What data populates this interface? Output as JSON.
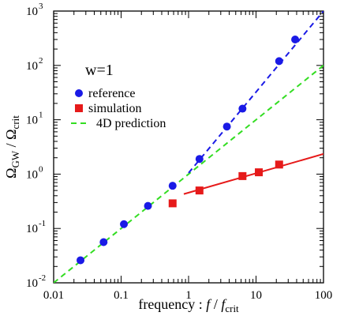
{
  "chart_data": {
    "type": "scatter",
    "xscale": "log",
    "yscale": "log",
    "xlim": [
      0.01,
      100
    ],
    "ylim": [
      0.01,
      1000
    ],
    "x_ticks": [
      0.01,
      0.1,
      1,
      10,
      100
    ],
    "x_tick_labels": [
      "0.01",
      "0.1",
      "1",
      "10",
      "100"
    ],
    "y_ticks": [
      0.01,
      0.1,
      1,
      10,
      100,
      1000
    ],
    "y_tick_labels": [
      {
        "base": "10",
        "exp": "-2"
      },
      {
        "base": "10",
        "exp": "-1"
      },
      {
        "base": "10",
        "exp": "0"
      },
      {
        "base": "10",
        "exp": "1"
      },
      {
        "base": "10",
        "exp": "2"
      },
      {
        "base": "10",
        "exp": "3"
      }
    ],
    "xlabel": {
      "prefix": "frequency : ",
      "f": "f",
      "slash": " / ",
      "f2": "f",
      "sub": "crit"
    },
    "ylabel": {
      "main": "Ω",
      "sub1": "GW",
      "slash": " / Ω",
      "sub2": "crit"
    },
    "annotation": "w=1",
    "legend": {
      "placement": "upper-left",
      "items": [
        {
          "label": "reference",
          "marker": "circle",
          "color": "#1a1ae6"
        },
        {
          "label": "simulation",
          "marker": "square",
          "color": "#e61a1a"
        },
        {
          "label": "4D prediction",
          "marker": "dashed-line",
          "color": "#33dd22"
        }
      ]
    },
    "series": [
      {
        "name": "reference",
        "kind": "points",
        "marker": "circle",
        "color": "#1a1ae6",
        "x": [
          0.025,
          0.055,
          0.11,
          0.25,
          0.58,
          1.45,
          3.7,
          6.3,
          22,
          38
        ],
        "y": [
          0.026,
          0.056,
          0.12,
          0.26,
          0.61,
          1.9,
          7.5,
          16,
          120,
          300
        ]
      },
      {
        "name": "simulation",
        "kind": "points",
        "marker": "square",
        "color": "#e61a1a",
        "x": [
          0.58,
          1.45,
          6.3,
          11,
          22
        ],
        "y": [
          0.29,
          0.5,
          0.92,
          1.08,
          1.5
        ]
      },
      {
        "name": "4D prediction",
        "kind": "line",
        "style": "dashed",
        "color": "#33dd22",
        "x": [
          0.01,
          100
        ],
        "y": [
          0.01,
          100
        ]
      },
      {
        "kind": "line",
        "style": "dashed",
        "color": "#1a1ae6",
        "x": [
          1,
          100
        ],
        "y": [
          1.05,
          1000
        ]
      },
      {
        "kind": "line",
        "style": "solid",
        "color": "#e61a1a",
        "x": [
          0.85,
          100
        ],
        "y": [
          0.43,
          2.35
        ]
      }
    ]
  }
}
